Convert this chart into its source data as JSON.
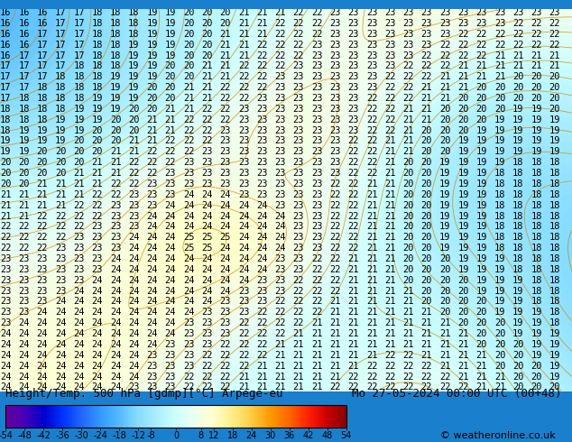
{
  "title_left": "Height/Temp. 500 hPa [gdmp][°C] Arpege-eu",
  "title_right": "Mo 27-05-2024 00:00 UTC (00+48)",
  "credit": "© weatheronline.co.uk",
  "colorbar_ticks": [
    -54,
    -48,
    -42,
    -36,
    -30,
    -24,
    -18,
    -12,
    -8,
    0,
    8,
    12,
    18,
    24,
    30,
    36,
    42,
    48,
    54
  ],
  "colorbar_labels": [
    "-54",
    "-48",
    "-42",
    "-36",
    "-30",
    "-24",
    "-18",
    "-12",
    "-8",
    "0",
    "8",
    "12",
    "18",
    "24",
    "30",
    "36",
    "42",
    "48",
    "54"
  ],
  "bg_color": "#2288ee",
  "title_fontsize": 9,
  "credit_fontsize": 8,
  "colorbar_label_fontsize": 7,
  "label_fontsize": 7.5
}
